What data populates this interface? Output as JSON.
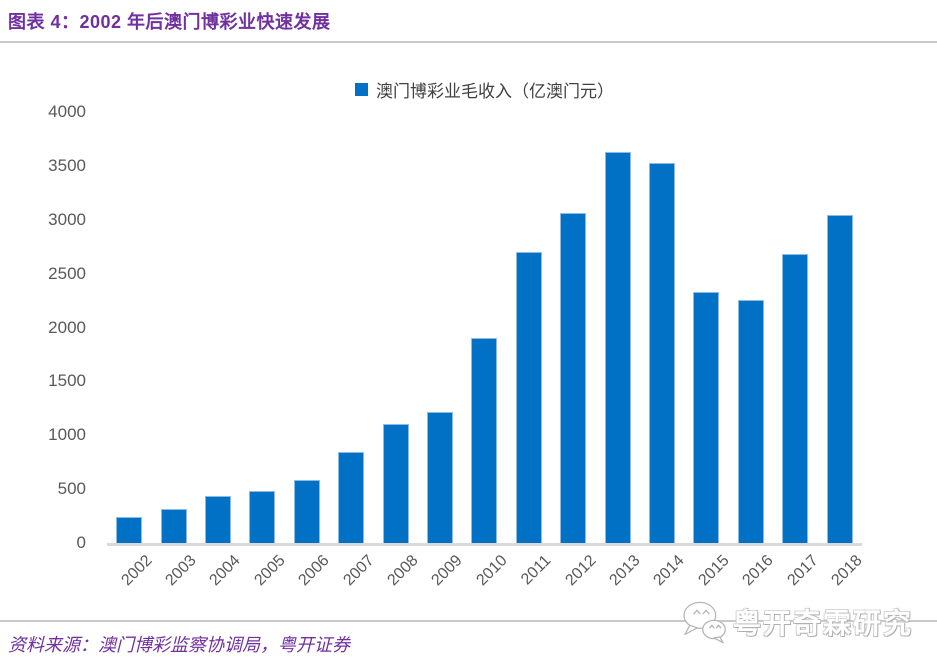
{
  "header": {
    "title": "图表 4：2002 年后澳门博彩业快速发展"
  },
  "chart_data": {
    "type": "bar",
    "title": "",
    "legend": [
      "澳门博彩业毛收入（亿澳门元）"
    ],
    "legend_position": "top-center",
    "categories": [
      "2002",
      "2003",
      "2004",
      "2005",
      "2006",
      "2007",
      "2008",
      "2009",
      "2010",
      "2011",
      "2012",
      "2013",
      "2014",
      "2015",
      "2016",
      "2017",
      "2018"
    ],
    "values": [
      240,
      315,
      440,
      480,
      585,
      845,
      1105,
      1215,
      1900,
      2700,
      3060,
      3625,
      3530,
      2330,
      2255,
      2680,
      3045
    ],
    "xlabel": "",
    "ylabel": "",
    "ylim": [
      0,
      4000
    ],
    "yticks": [
      0,
      500,
      1000,
      1500,
      2000,
      2500,
      3000,
      3500,
      4000
    ],
    "grid": false,
    "bar_color": "#0071C5",
    "axis_text_color": "#595959",
    "x_tick_rotation_deg": 45
  },
  "footer": {
    "source": "资料来源：澳门博彩监察协调局，粤开证券",
    "watermark_text": "粤开奇霖研究",
    "watermark_icon": "wechat-icon"
  },
  "colors": {
    "title_text": "#7030A0",
    "source_text": "#7030A0",
    "separator_line": "#C9C9C9",
    "axis_line": "#D9D9D9",
    "legend_text": "#404040"
  }
}
